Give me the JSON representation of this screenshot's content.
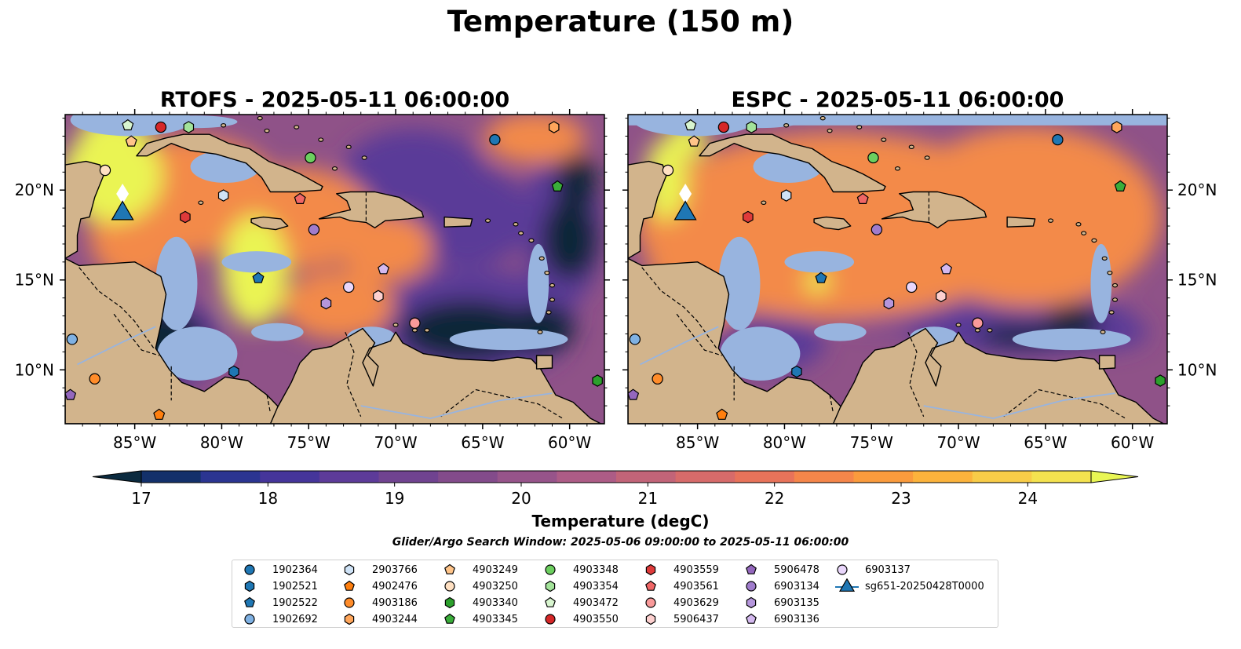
{
  "figure": {
    "title": "Temperature (150 m)",
    "panels": [
      {
        "id": "left",
        "title": "RTOFS - 2025-05-11 06:00:00",
        "ylabel_side": "left"
      },
      {
        "id": "right",
        "title": "ESPC - 2025-05-11 06:00:00",
        "ylabel_side": "right"
      }
    ],
    "map_extent": {
      "lon_min": -89,
      "lon_max": -58,
      "lat_min": 7,
      "lat_max": 24.2
    },
    "lon_ticks": [
      "85°W",
      "80°W",
      "75°W",
      "70°W",
      "65°W",
      "60°W"
    ],
    "lat_ticks": [
      "20°N",
      "15°N",
      "10°N"
    ],
    "colorbar": {
      "label": "Temperature (degC)",
      "ticks": [
        "17",
        "18",
        "19",
        "20",
        "21",
        "22",
        "23",
        "24"
      ],
      "range": [
        17,
        24.5
      ],
      "colors": [
        "#0b2a3f",
        "#13306a",
        "#2b3591",
        "#45359a",
        "#5d3b99",
        "#704390",
        "#834b8b",
        "#97548a",
        "#ad5c86",
        "#c26478",
        "#d76b6a",
        "#e8735a",
        "#f5864a",
        "#fa9b3d",
        "#fcb33c",
        "#f8cc48",
        "#f4e24f",
        "#e9f654"
      ]
    },
    "search_window_text": "Glider/Argo Search Window: 2025-05-06 09:00:00 to 2025-05-11 06:00:00",
    "colors": {
      "land": "#d2b48c",
      "shelf_water": "#98b4df",
      "ocean_mid": "#8f5288",
      "warm": "#f38a49",
      "hot": "#eaf452",
      "cold": "#0c2738"
    }
  },
  "legend": {
    "items": [
      {
        "label": "1902364",
        "marker": "circle",
        "color": "#1f77b4"
      },
      {
        "label": "1902521",
        "marker": "hexagon",
        "color": "#1f77b4"
      },
      {
        "label": "1902522",
        "marker": "pentagon",
        "color": "#1f77b4"
      },
      {
        "label": "1902692",
        "marker": "circle",
        "color": "#7fb1e3"
      },
      {
        "label": "2903766",
        "marker": "hexagon",
        "color": "#cfe3f7"
      },
      {
        "label": "4902476",
        "marker": "pentagon",
        "color": "#ff7f0e"
      },
      {
        "label": "4903186",
        "marker": "circle",
        "color": "#ff8c2a"
      },
      {
        "label": "4903244",
        "marker": "hexagon",
        "color": "#ffa65b"
      },
      {
        "label": "4903249",
        "marker": "pentagon",
        "color": "#ffc489"
      },
      {
        "label": "4903250",
        "marker": "circle",
        "color": "#ffe0c2"
      },
      {
        "label": "4903340",
        "marker": "hexagon",
        "color": "#2ca02c"
      },
      {
        "label": "4903345",
        "marker": "pentagon",
        "color": "#3aad3a"
      },
      {
        "label": "4903348",
        "marker": "circle",
        "color": "#6ccf5f"
      },
      {
        "label": "4903354",
        "marker": "hexagon",
        "color": "#a3e39a"
      },
      {
        "label": "4903472",
        "marker": "pentagon",
        "color": "#d8f5cf"
      },
      {
        "label": "4903550",
        "marker": "circle",
        "color": "#d62728"
      },
      {
        "label": "4903559",
        "marker": "hexagon",
        "color": "#df3a3a"
      },
      {
        "label": "4903561",
        "marker": "pentagon",
        "color": "#f06666"
      },
      {
        "label": "4903629",
        "marker": "circle",
        "color": "#f99a9a"
      },
      {
        "label": "5906437",
        "marker": "hexagon",
        "color": "#fdd0cf"
      },
      {
        "label": "5906478",
        "marker": "pentagon",
        "color": "#9467bd"
      },
      {
        "label": "6903134",
        "marker": "circle",
        "color": "#a07ccc"
      },
      {
        "label": "6903135",
        "marker": "hexagon",
        "color": "#b596dc"
      },
      {
        "label": "6903136",
        "marker": "pentagon",
        "color": "#d4b9ef"
      },
      {
        "label": "6903137",
        "marker": "circle",
        "color": "#e9d6fb"
      },
      {
        "label": "sg651-20250428T0000",
        "marker": "triangle",
        "color": "#1f77b4"
      }
    ]
  },
  "observations": [
    {
      "id": "1902364",
      "lon": -64.3,
      "lat": 22.8
    },
    {
      "id": "1902521",
      "lon": -79.3,
      "lat": 9.9
    },
    {
      "id": "1902522",
      "lon": -77.9,
      "lat": 15.1
    },
    {
      "id": "1902692",
      "lon": -88.6,
      "lat": 11.7
    },
    {
      "id": "2903766",
      "lon": -79.9,
      "lat": 19.7
    },
    {
      "id": "4902476",
      "lon": -83.6,
      "lat": 7.5
    },
    {
      "id": "4903186",
      "lon": -87.3,
      "lat": 9.5
    },
    {
      "id": "4903244",
      "lon": -60.9,
      "lat": 23.5
    },
    {
      "id": "4903249",
      "lon": -85.2,
      "lat": 22.7
    },
    {
      "id": "4903250",
      "lon": -86.7,
      "lat": 21.1
    },
    {
      "id": "4903340",
      "lon": -58.4,
      "lat": 9.4
    },
    {
      "id": "4903345",
      "lon": -60.7,
      "lat": 20.2
    },
    {
      "id": "4903348",
      "lon": -74.9,
      "lat": 21.8
    },
    {
      "id": "4903354",
      "lon": -81.9,
      "lat": 23.5
    },
    {
      "id": "4903472",
      "lon": -85.4,
      "lat": 23.6
    },
    {
      "id": "4903550",
      "lon": -83.5,
      "lat": 23.5
    },
    {
      "id": "4903559",
      "lon": -82.1,
      "lat": 18.5
    },
    {
      "id": "4903561",
      "lon": -75.5,
      "lat": 19.5
    },
    {
      "id": "4903629",
      "lon": -68.9,
      "lat": 12.6
    },
    {
      "id": "5906437",
      "lon": -71.0,
      "lat": 14.1
    },
    {
      "id": "5906478",
      "lon": -88.7,
      "lat": 8.6
    },
    {
      "id": "6903134",
      "lon": -74.7,
      "lat": 17.8
    },
    {
      "id": "6903135",
      "lon": -74.0,
      "lat": 13.7
    },
    {
      "id": "6903136",
      "lon": -70.7,
      "lat": 15.6
    },
    {
      "id": "6903137",
      "lon": -72.7,
      "lat": 14.6
    }
  ],
  "glider": {
    "id": "sg651-20250428T0000",
    "lon": -85.7,
    "lat": 18.7
  }
}
